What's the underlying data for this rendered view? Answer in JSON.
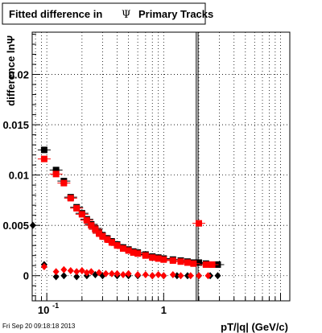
{
  "title": {
    "prefix": "Fitted difference in",
    "symbol": "Ψ",
    "suffix": "Primary Tracks"
  },
  "footer_timestamp": "Fri Sep 20 09:18:18 2013",
  "chart_data": {
    "type": "scatter",
    "xlabel": "pT/|q| (GeV/c)",
    "ylabel": "difference lnΨ",
    "x_scale": "log",
    "xlim": [
      0.075,
      12
    ],
    "ylim": [
      -0.0025,
      0.0242
    ],
    "x_tick_labels": [
      {
        "value": 0.1,
        "base": "10",
        "exp": "-1"
      },
      {
        "value": 1,
        "base": "1",
        "exp": ""
      }
    ],
    "y_ticks": [
      0,
      0.005,
      0.01,
      0.015,
      0.02
    ],
    "y_tick_labels": [
      "0",
      "0.005",
      "0.01",
      "0.015",
      "0.02"
    ],
    "grid": true,
    "vertical_lines": [
      1.9,
      1.97
    ],
    "colors": {
      "series_black": "#000000",
      "series_red": "#ff0000",
      "grid": "#000000"
    },
    "series": [
      {
        "color": "#000000",
        "marker": "square",
        "points": [
          [
            0.095,
            0.0125
          ],
          [
            0.12,
            0.0105
          ],
          [
            0.14,
            0.0094
          ],
          [
            0.16,
            0.0078
          ],
          [
            0.18,
            0.0068
          ],
          [
            0.2,
            0.0062
          ],
          [
            0.22,
            0.0056
          ],
          [
            0.24,
            0.0051
          ],
          [
            0.26,
            0.0047
          ],
          [
            0.28,
            0.0043
          ],
          [
            0.3,
            0.004
          ],
          [
            0.33,
            0.0037
          ],
          [
            0.36,
            0.0034
          ],
          [
            0.4,
            0.0031
          ],
          [
            0.45,
            0.0028
          ],
          [
            0.5,
            0.0026
          ],
          [
            0.55,
            0.0024
          ],
          [
            0.6,
            0.0023
          ],
          [
            0.7,
            0.0021
          ],
          [
            0.8,
            0.0019
          ],
          [
            0.9,
            0.0018
          ],
          [
            1.0,
            0.0017
          ],
          [
            1.2,
            0.0016
          ],
          [
            1.4,
            0.0015
          ],
          [
            1.6,
            0.0014
          ],
          [
            1.8,
            0.0013
          ],
          [
            2.0,
            0.0013
          ],
          [
            2.3,
            0.0012
          ],
          [
            2.6,
            0.0011
          ],
          [
            2.9,
            0.0011
          ]
        ]
      },
      {
        "color": "#ff0000",
        "marker": "square",
        "points": [
          [
            0.095,
            0.0116
          ],
          [
            0.12,
            0.0101
          ],
          [
            0.14,
            0.0092
          ],
          [
            0.16,
            0.0077
          ],
          [
            0.18,
            0.0067
          ],
          [
            0.2,
            0.0061
          ],
          [
            0.22,
            0.0055
          ],
          [
            0.24,
            0.005
          ],
          [
            0.26,
            0.0046
          ],
          [
            0.28,
            0.0042
          ],
          [
            0.3,
            0.0039
          ],
          [
            0.33,
            0.0036
          ],
          [
            0.36,
            0.0033
          ],
          [
            0.4,
            0.003
          ],
          [
            0.45,
            0.0027
          ],
          [
            0.5,
            0.0025
          ],
          [
            0.55,
            0.0023
          ],
          [
            0.6,
            0.0022
          ],
          [
            0.7,
            0.002
          ],
          [
            0.8,
            0.0018
          ],
          [
            0.9,
            0.0017
          ],
          [
            1.0,
            0.0016
          ],
          [
            1.2,
            0.0015
          ],
          [
            1.4,
            0.0014
          ],
          [
            1.6,
            0.0013
          ],
          [
            1.8,
            0.0012
          ],
          [
            2.0,
            0.0052
          ],
          [
            2.3,
            0.0011
          ],
          [
            2.6,
            0.0011
          ]
        ]
      },
      {
        "color": "#000000",
        "marker": "diamond",
        "points": [
          [
            0.076,
            0.005
          ],
          [
            0.095,
            0.0011
          ],
          [
            0.12,
            -0.0001
          ],
          [
            0.14,
            0.0
          ],
          [
            0.18,
            -0.0001
          ],
          [
            0.22,
            0.0
          ],
          [
            0.26,
            0.0001
          ],
          [
            0.3,
            0.0
          ],
          [
            0.4,
            0.0
          ],
          [
            0.5,
            0.0
          ],
          [
            0.6,
            0.0
          ],
          [
            0.8,
            0.0
          ],
          [
            1.0,
            0.0
          ],
          [
            1.3,
            0.0
          ],
          [
            1.6,
            0.0
          ],
          [
            2.0,
            0.0
          ],
          [
            2.5,
            0.0
          ],
          [
            2.9,
            0.0
          ]
        ]
      },
      {
        "color": "#ff0000",
        "marker": "diamond",
        "points": [
          [
            0.095,
            0.0009
          ],
          [
            0.12,
            0.0004
          ],
          [
            0.14,
            0.0006
          ],
          [
            0.16,
            0.0005
          ],
          [
            0.18,
            0.0004
          ],
          [
            0.2,
            0.0005
          ],
          [
            0.22,
            0.0003
          ],
          [
            0.24,
            0.0004
          ],
          [
            0.28,
            0.0003
          ],
          [
            0.32,
            0.0002
          ],
          [
            0.36,
            0.0002
          ],
          [
            0.4,
            0.0002
          ],
          [
            0.45,
            0.0001
          ],
          [
            0.5,
            0.0002
          ],
          [
            0.6,
            0.0001
          ],
          [
            0.7,
            0.0001
          ],
          [
            0.8,
            0.0
          ],
          [
            0.9,
            0.0001
          ],
          [
            1.0,
            0.0
          ],
          [
            1.2,
            0.0001
          ],
          [
            1.4,
            0.0
          ],
          [
            1.7,
            0.0
          ],
          [
            2.0,
            0.0
          ],
          [
            2.4,
            0.0
          ]
        ]
      }
    ]
  }
}
